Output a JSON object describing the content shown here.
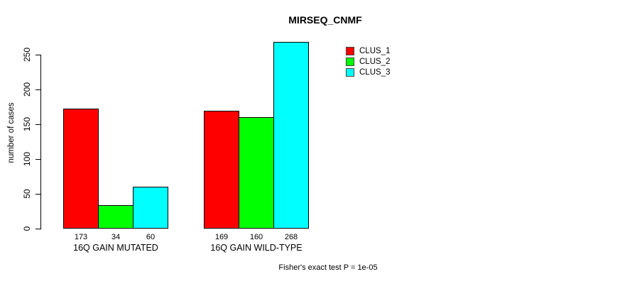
{
  "chart_data": {
    "type": "bar",
    "title": "MIRSEQ_CNMF",
    "ylabel": "number of cases",
    "xlabel": "",
    "categories": [
      "16Q GAIN MUTATED",
      "16Q GAIN WILD-TYPE"
    ],
    "series": [
      {
        "name": "CLUS_1",
        "color": "#ff0000",
        "values": [
          173,
          169
        ]
      },
      {
        "name": "CLUS_2",
        "color": "#00ff00",
        "values": [
          34,
          160
        ]
      },
      {
        "name": "CLUS_3",
        "color": "#00ffff",
        "values": [
          60,
          268
        ]
      }
    ],
    "bar_value_labels": [
      [
        173,
        34,
        60
      ],
      [
        169,
        160,
        268
      ]
    ],
    "yticks": [
      0,
      50,
      100,
      150,
      200,
      250
    ],
    "ylim": [
      0,
      250
    ],
    "grid": false,
    "legend_position": "top-right",
    "legend": [
      {
        "label": "CLUS_1",
        "color": "#ff0000"
      },
      {
        "label": "CLUS_2",
        "color": "#00ff00"
      },
      {
        "label": "CLUS_3",
        "color": "#00ffff"
      }
    ],
    "annotation": "Fisher's exact test P = 1e-05"
  }
}
